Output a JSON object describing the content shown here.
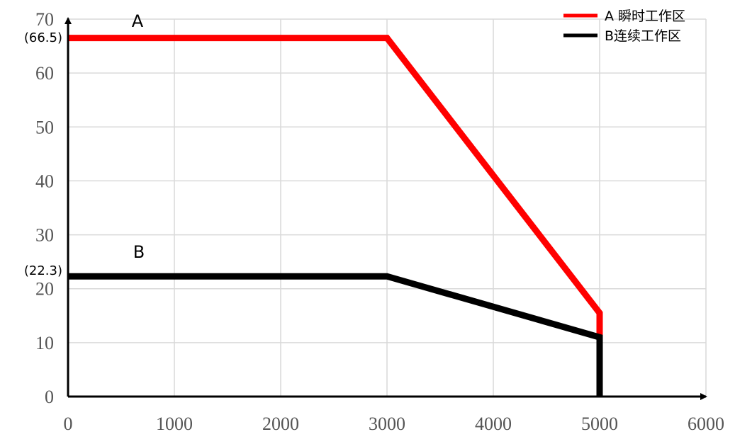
{
  "chart_data": {
    "type": "line",
    "series": [
      {
        "name": "A 瞬时工作区",
        "color": "#ff0000",
        "x": [
          0,
          3000,
          5000,
          5000
        ],
        "values": [
          66.5,
          66.5,
          15.5,
          11
        ]
      },
      {
        "name": "B连续工作区",
        "color": "#000000",
        "x": [
          0,
          3000,
          5000,
          5000
        ],
        "values": [
          22.3,
          22.3,
          11,
          0
        ]
      }
    ],
    "annotations": [
      "A",
      "B",
      "(66.5)",
      "(22.3)"
    ],
    "xlim": [
      0,
      6000
    ],
    "xticks": [
      0,
      1000,
      2000,
      3000,
      4000,
      5000,
      6000
    ],
    "ylim": [
      0,
      70
    ],
    "yticks": [
      0,
      10,
      20,
      30,
      40,
      50,
      60,
      70
    ],
    "grid": true,
    "legend": "top-right"
  }
}
